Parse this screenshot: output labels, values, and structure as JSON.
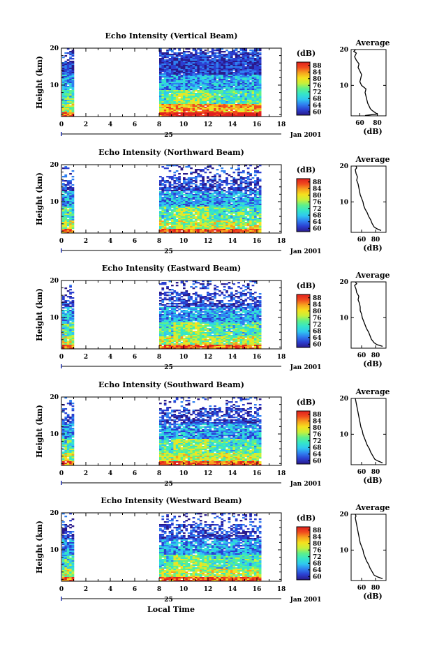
{
  "colors": {
    "scale": [
      "#2a1a8c",
      "#2b3fd0",
      "#2f7ff0",
      "#2fc8f0",
      "#35e6c8",
      "#5ef08a",
      "#c8f03a",
      "#f5e11e",
      "#f7a21e",
      "#f04a1e",
      "#e0201e"
    ],
    "ink": "#000000"
  },
  "xaxis_label": "Local Time",
  "chart_data": [
    {
      "type": "heatmap",
      "title": "Echo Intensity (Vertical Beam)",
      "ylabel": "Height (km)",
      "xticks": [
        "0",
        "2",
        "4",
        "6",
        "8",
        "10",
        "12",
        "14",
        "16",
        "18"
      ],
      "yticks": [
        "20",
        "10"
      ],
      "xlim": [
        0,
        18
      ],
      "ylim": [
        1.5,
        20
      ],
      "data_gap_hours": [
        1,
        8
      ],
      "data_end_hour": 16.3,
      "date_marker": "25",
      "date_label": "Jan 2001",
      "colorbar": {
        "unit": "(dB)",
        "ticks": [
          "88",
          "84",
          "80",
          "76",
          "72",
          "68",
          "64",
          "60"
        ],
        "range": [
          58,
          90
        ]
      },
      "profile": {
        "title": "Average",
        "xlabel": "(dB)",
        "xticks": [
          "60",
          "80"
        ],
        "yticks": [
          "20",
          "10"
        ],
        "xlim": [
          50,
          90
        ],
        "ylim": [
          1.5,
          20
        ],
        "points": [
          [
            66,
            1.6
          ],
          [
            80,
            2
          ],
          [
            77,
            2.5
          ],
          [
            74,
            3
          ],
          [
            72,
            3.5
          ],
          [
            71,
            4
          ],
          [
            69,
            5
          ],
          [
            68,
            6
          ],
          [
            67,
            7
          ],
          [
            66,
            8
          ],
          [
            67,
            9
          ],
          [
            62,
            10
          ],
          [
            60,
            11
          ],
          [
            61,
            12
          ],
          [
            62,
            13
          ],
          [
            60,
            14
          ],
          [
            58,
            15
          ],
          [
            59,
            16
          ],
          [
            56,
            17
          ],
          [
            54,
            18
          ],
          [
            56,
            19
          ],
          [
            53,
            19.5
          ],
          [
            55,
            20
          ]
        ]
      }
    },
    {
      "type": "heatmap",
      "title": "Echo Intensity (Northward Beam)",
      "ylabel": "Height (km)",
      "xticks": [
        "0",
        "2",
        "4",
        "6",
        "8",
        "10",
        "12",
        "14",
        "16",
        "18"
      ],
      "yticks": [
        "20",
        "10"
      ],
      "xlim": [
        0,
        18
      ],
      "ylim": [
        1.5,
        20
      ],
      "data_gap_hours": [
        1,
        8
      ],
      "data_end_hour": 16.3,
      "date_marker": "25",
      "date_label": "Jan 2001",
      "colorbar": {
        "unit": "(dB)",
        "ticks": [
          "88",
          "84",
          "80",
          "76",
          "72",
          "68",
          "64",
          "60"
        ],
        "range": [
          58,
          90
        ]
      },
      "profile": {
        "title": "Average",
        "xlabel": "(dB)",
        "xticks": [
          "60",
          "80"
        ],
        "yticks": [
          "20",
          "10"
        ],
        "xlim": [
          45,
          95
        ],
        "ylim": [
          1.5,
          20
        ],
        "points": [
          [
            88,
            2
          ],
          [
            82,
            2.5
          ],
          [
            78,
            3
          ],
          [
            75,
            4
          ],
          [
            73,
            5
          ],
          [
            70,
            6
          ],
          [
            68,
            7
          ],
          [
            65,
            8
          ],
          [
            63,
            9
          ],
          [
            62,
            10
          ],
          [
            60,
            11
          ],
          [
            58,
            12
          ],
          [
            57,
            13
          ],
          [
            56,
            14
          ],
          [
            55,
            15
          ],
          [
            53,
            16
          ],
          [
            54,
            17
          ],
          [
            52,
            18
          ],
          [
            51,
            19
          ],
          [
            53,
            19.5
          ],
          [
            52,
            20
          ]
        ]
      }
    },
    {
      "type": "heatmap",
      "title": "Echo Intensity (Eastward Beam)",
      "ylabel": "Height (km)",
      "xticks": [
        "0",
        "2",
        "4",
        "6",
        "8",
        "10",
        "12",
        "14",
        "16",
        "18"
      ],
      "yticks": [
        "20",
        "10"
      ],
      "xlim": [
        0,
        18
      ],
      "ylim": [
        1.5,
        20
      ],
      "data_gap_hours": [
        1,
        8
      ],
      "data_end_hour": 16.3,
      "date_marker": "25",
      "date_label": "Jan 2001",
      "colorbar": {
        "unit": "(dB)",
        "ticks": [
          "88",
          "84",
          "80",
          "76",
          "72",
          "68",
          "64",
          "60"
        ],
        "range": [
          58,
          90
        ]
      },
      "profile": {
        "title": "Average",
        "xlabel": "(dB)",
        "xticks": [
          "60",
          "80"
        ],
        "yticks": [
          "20",
          "10"
        ],
        "xlim": [
          45,
          95
        ],
        "ylim": [
          1.5,
          20
        ],
        "points": [
          [
            90,
            2
          ],
          [
            82,
            2.5
          ],
          [
            78,
            3
          ],
          [
            74,
            4
          ],
          [
            72,
            5
          ],
          [
            70,
            6
          ],
          [
            67,
            7
          ],
          [
            65,
            8
          ],
          [
            63,
            9
          ],
          [
            61,
            10
          ],
          [
            60,
            11
          ],
          [
            58,
            12
          ],
          [
            58,
            13
          ],
          [
            57,
            14
          ],
          [
            55,
            15
          ],
          [
            56,
            16
          ],
          [
            53,
            17
          ],
          [
            52,
            18
          ],
          [
            50,
            19
          ],
          [
            53,
            19.5
          ],
          [
            51,
            20
          ]
        ]
      }
    },
    {
      "type": "heatmap",
      "title": "Echo Intensity (Southward Beam)",
      "ylabel": "Height (km)",
      "xticks": [
        "0",
        "2",
        "4",
        "6",
        "8",
        "10",
        "12",
        "14",
        "16",
        "18"
      ],
      "yticks": [
        "20",
        "10"
      ],
      "xlim": [
        0,
        18
      ],
      "ylim": [
        1.5,
        20
      ],
      "data_gap_hours": [
        1,
        8
      ],
      "data_end_hour": 16.3,
      "date_marker": "25",
      "date_label": "Jan 2001",
      "colorbar": {
        "unit": "(dB)",
        "ticks": [
          "88",
          "84",
          "80",
          "76",
          "72",
          "68",
          "64",
          "60"
        ],
        "range": [
          58,
          90
        ]
      },
      "profile": {
        "title": "Average",
        "xlabel": "(dB)",
        "xticks": [
          "60",
          "80"
        ],
        "yticks": [
          "20",
          "10"
        ],
        "xlim": [
          45,
          95
        ],
        "ylim": [
          1.5,
          20
        ],
        "points": [
          [
            90,
            2
          ],
          [
            84,
            2.5
          ],
          [
            79,
            3
          ],
          [
            76,
            4
          ],
          [
            73,
            5
          ],
          [
            71,
            6
          ],
          [
            68,
            7
          ],
          [
            66,
            8
          ],
          [
            64,
            9
          ],
          [
            62,
            10
          ],
          [
            61,
            11
          ],
          [
            59,
            12
          ],
          [
            58,
            13
          ],
          [
            57,
            14
          ],
          [
            56,
            15
          ],
          [
            55,
            16
          ],
          [
            54,
            17
          ],
          [
            53,
            18
          ],
          [
            52,
            19
          ],
          [
            51,
            20
          ]
        ]
      }
    },
    {
      "type": "heatmap",
      "title": "Echo Intensity (Westward Beam)",
      "ylabel": "Height (km)",
      "xticks": [
        "0",
        "2",
        "4",
        "6",
        "8",
        "10",
        "12",
        "14",
        "16",
        "18"
      ],
      "yticks": [
        "20",
        "10"
      ],
      "xlim": [
        0,
        18
      ],
      "ylim": [
        1.5,
        20
      ],
      "data_gap_hours": [
        1,
        8
      ],
      "data_end_hour": 16.3,
      "date_marker": "25",
      "date_label": "Jan 2001",
      "colorbar": {
        "unit": "(dB)",
        "ticks": [
          "88",
          "84",
          "80",
          "76",
          "72",
          "68",
          "64",
          "60"
        ],
        "range": [
          58,
          90
        ]
      },
      "profile": {
        "title": "Average",
        "xlabel": "(dB)",
        "xticks": [
          "60",
          "80"
        ],
        "yticks": [
          "20",
          "10"
        ],
        "xlim": [
          45,
          95
        ],
        "ylim": [
          1.5,
          20
        ],
        "points": [
          [
            90,
            2
          ],
          [
            83,
            2.5
          ],
          [
            78,
            3
          ],
          [
            75,
            4
          ],
          [
            72,
            5
          ],
          [
            70,
            6
          ],
          [
            67,
            7
          ],
          [
            65,
            8
          ],
          [
            63,
            9
          ],
          [
            62,
            10
          ],
          [
            60,
            11
          ],
          [
            58,
            12
          ],
          [
            57,
            13
          ],
          [
            56,
            14
          ],
          [
            55,
            15
          ],
          [
            54,
            16
          ],
          [
            53,
            17
          ],
          [
            52,
            18
          ],
          [
            51,
            19
          ],
          [
            52,
            19.5
          ],
          [
            51,
            20
          ]
        ]
      }
    }
  ]
}
